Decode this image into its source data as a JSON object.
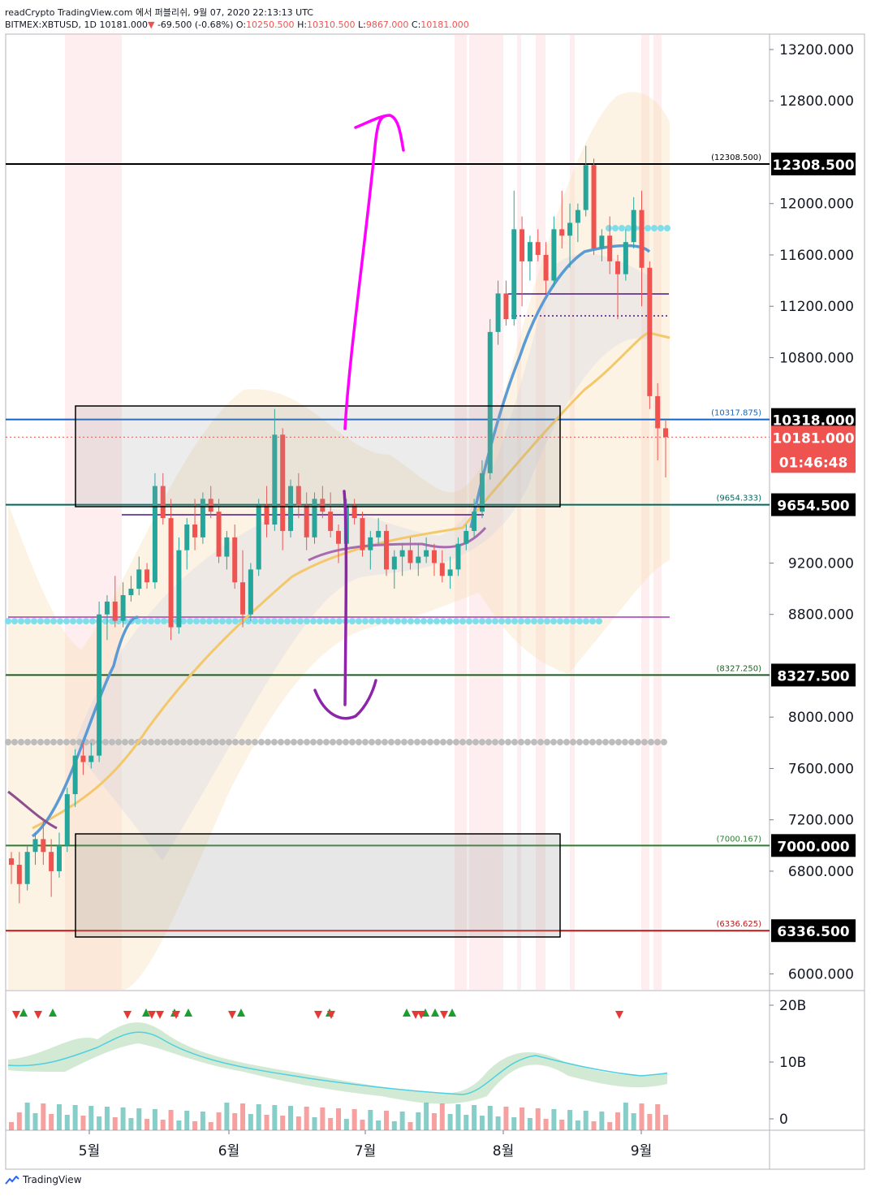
{
  "header": {
    "line1": "readCrypto TradingView.com 에서 퍼블리쉬, 9월 07, 2020 22:13:13 UTC",
    "symbol": "BITMEX:XBTUSD, 1D",
    "last": "10181.000",
    "change": "-69.500 (-0.68%)",
    "o_label": "O:",
    "o": "10250.500",
    "h_label": "H:",
    "h": "10310.500",
    "l_label": "L:",
    "l": "9867.000",
    "c_label": "C:",
    "c": "10181.000"
  },
  "colors": {
    "up": "#26a69a",
    "down": "#ef5350",
    "magenta": "#ff00ff",
    "purple": "#8e24aa",
    "ema_blue": "#5b9bd5",
    "ema_yellow": "#f2c86b",
    "dotted_cyan": "#80deea",
    "grey_dots": "#bdbdbd"
  },
  "chart_data": {
    "type": "candlestick",
    "price_axis": {
      "ticks": [
        "13200.000",
        "12800.000",
        "12000.000",
        "11600.000",
        "11200.000",
        "10800.000",
        "9200.000",
        "8800.000",
        "8000.000",
        "7600.000",
        "7200.000",
        "6800.000",
        "6000.000"
      ],
      "ylim": [
        5870,
        13320
      ]
    },
    "time_axis": {
      "ticks": [
        "5월",
        "6월",
        "7월",
        "8월",
        "9월"
      ]
    },
    "price_labels": [
      {
        "value": 12308.5,
        "text": "12308.500",
        "note": "(12308.500)",
        "line_color": "#000000",
        "bg": "#000000"
      },
      {
        "value": 10318.0,
        "text": "10318.000",
        "note": "(10317.875)",
        "line_color": "#1565c0",
        "bg": "#000000"
      },
      {
        "value": 10181.0,
        "text": "10181.000",
        "countdown": "01:46:48",
        "bg": "#ef5350"
      },
      {
        "value": 9654.5,
        "text": "9654.500",
        "note": "(9654.333)",
        "line_color": "#00695c",
        "bg": "#000000"
      },
      {
        "value": 8327.5,
        "text": "8327.500",
        "note": "(8327.250)",
        "line_color": "#1b5e20",
        "bg": "#000000"
      },
      {
        "value": 7000.0,
        "text": "7000.000",
        "note": "(7000.167)",
        "line_color": "#2e7d32",
        "bg": "#000000"
      },
      {
        "value": 6336.5,
        "text": "6336.500",
        "note": "(6336.625)",
        "line_color": "#b71c1c",
        "bg": "#000000"
      }
    ],
    "volume_axis": {
      "ticks": [
        "20B",
        "10B",
        "0"
      ]
    },
    "candles": [
      [
        6900,
        6950,
        6700,
        6850
      ],
      [
        6850,
        6950,
        6550,
        6700
      ],
      [
        6700,
        7000,
        6650,
        6950
      ],
      [
        6950,
        7100,
        6850,
        7050
      ],
      [
        7050,
        7200,
        6850,
        6950
      ],
      [
        6950,
        7050,
        6600,
        6800
      ],
      [
        6800,
        7100,
        6750,
        7000
      ],
      [
        7000,
        7450,
        6950,
        7400
      ],
      [
        7400,
        7750,
        7300,
        7700
      ],
      [
        7700,
        7800,
        7550,
        7650
      ],
      [
        7650,
        7800,
        7600,
        7700
      ],
      [
        7700,
        8900,
        7650,
        8800
      ],
      [
        8800,
        8950,
        8600,
        8900
      ],
      [
        8900,
        9100,
        8700,
        8750
      ],
      [
        8750,
        9050,
        8700,
        8950
      ],
      [
        8950,
        9100,
        8900,
        9000
      ],
      [
        9000,
        9250,
        8950,
        9150
      ],
      [
        9150,
        9200,
        9000,
        9050
      ],
      [
        9050,
        9900,
        9000,
        9800
      ],
      [
        9800,
        9900,
        9500,
        9550
      ],
      [
        9550,
        9700,
        8600,
        8700
      ],
      [
        8700,
        9400,
        8650,
        9300
      ],
      [
        9300,
        9550,
        9150,
        9500
      ],
      [
        9500,
        9700,
        9300,
        9400
      ],
      [
        9400,
        9750,
        9350,
        9700
      ],
      [
        9700,
        9800,
        9550,
        9600
      ],
      [
        9600,
        9700,
        9200,
        9250
      ],
      [
        9250,
        9450,
        9150,
        9400
      ],
      [
        9400,
        9500,
        9000,
        9050
      ],
      [
        9050,
        9300,
        8700,
        8800
      ],
      [
        8800,
        9200,
        8750,
        9150
      ],
      [
        9150,
        9700,
        9100,
        9650
      ],
      [
        9650,
        9800,
        9400,
        9500
      ],
      [
        9500,
        10400,
        9450,
        10200
      ],
      [
        10200,
        10250,
        9300,
        9450
      ],
      [
        9450,
        9850,
        9400,
        9800
      ],
      [
        9800,
        9900,
        9550,
        9650
      ],
      [
        9650,
        9750,
        9300,
        9400
      ],
      [
        9400,
        9750,
        9350,
        9700
      ],
      [
        9700,
        9800,
        9550,
        9600
      ],
      [
        9600,
        9750,
        9400,
        9450
      ],
      [
        9450,
        9500,
        9200,
        9350
      ],
      [
        9350,
        9700,
        9300,
        9650
      ],
      [
        9650,
        9700,
        9500,
        9550
      ],
      [
        9550,
        9600,
        9250,
        9300
      ],
      [
        9300,
        9450,
        9150,
        9400
      ],
      [
        9400,
        9550,
        9350,
        9450
      ],
      [
        9450,
        9500,
        9100,
        9150
      ],
      [
        9150,
        9300,
        9000,
        9250
      ],
      [
        9250,
        9350,
        9100,
        9300
      ],
      [
        9300,
        9400,
        9150,
        9200
      ],
      [
        9200,
        9350,
        9100,
        9250
      ],
      [
        9250,
        9400,
        9200,
        9300
      ],
      [
        9300,
        9350,
        9100,
        9200
      ],
      [
        9200,
        9300,
        9050,
        9100
      ],
      [
        9100,
        9250,
        9000,
        9150
      ],
      [
        9150,
        9400,
        9100,
        9350
      ],
      [
        9350,
        9500,
        9300,
        9450
      ],
      [
        9450,
        9700,
        9400,
        9600
      ],
      [
        9600,
        10000,
        9550,
        9900
      ],
      [
        9900,
        11100,
        9850,
        11000
      ],
      [
        11000,
        11400,
        10900,
        11300
      ],
      [
        11300,
        11400,
        11050,
        11100
      ],
      [
        11100,
        12100,
        11050,
        11800
      ],
      [
        11800,
        11900,
        11200,
        11550
      ],
      [
        11550,
        11750,
        11400,
        11700
      ],
      [
        11700,
        11800,
        11550,
        11600
      ],
      [
        11600,
        11700,
        11300,
        11400
      ],
      [
        11400,
        11900,
        11350,
        11800
      ],
      [
        11800,
        12100,
        11650,
        11750
      ],
      [
        11750,
        12000,
        11500,
        11850
      ],
      [
        11850,
        12000,
        11700,
        11950
      ],
      [
        11950,
        12450,
        11900,
        12300
      ],
      [
        12300,
        12350,
        11600,
        11650
      ],
      [
        11650,
        11800,
        11550,
        11750
      ],
      [
        11750,
        11900,
        11450,
        11550
      ],
      [
        11550,
        11600,
        11100,
        11450
      ],
      [
        11450,
        11800,
        11400,
        11700
      ],
      [
        11700,
        12050,
        11650,
        11950
      ],
      [
        11950,
        12100,
        11200,
        11500
      ],
      [
        11500,
        11550,
        10400,
        10500
      ],
      [
        10500,
        10600,
        10000,
        10250
      ],
      [
        10250,
        10310,
        9867,
        10181
      ]
    ],
    "volume_markers": {
      "up": [
        29,
        65,
        180,
        215,
        232,
        297,
        406,
        501,
        524,
        536,
        557
      ],
      "down": [
        20,
        47,
        157,
        187,
        197,
        217,
        286,
        392,
        408,
        512,
        519,
        547,
        763
      ]
    }
  },
  "footer": {
    "brand": "TradingView"
  }
}
